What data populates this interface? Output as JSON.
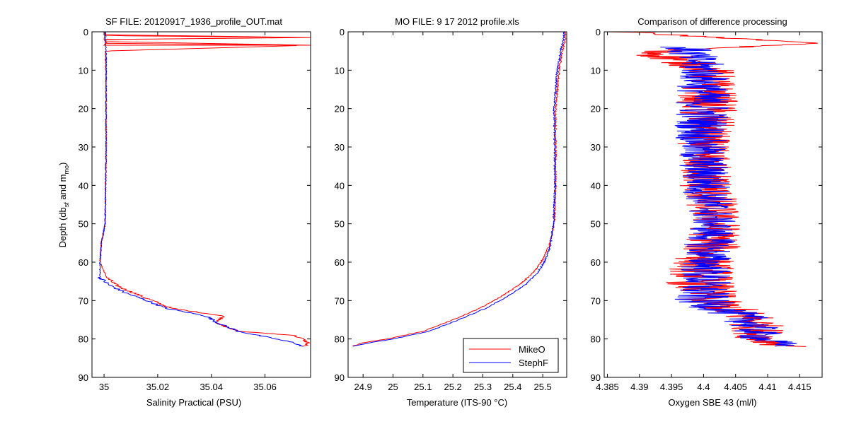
{
  "figure": {
    "ylabel_main": "Depth (db",
    "ylabel_sub1": "sf",
    "ylabel_mid": " and m",
    "ylabel_sub2": "mo",
    "ylabel_end": ")"
  },
  "chart_data": [
    {
      "type": "line",
      "title": "SF FILE: 20120917_1936_profile_OUT.mat",
      "xlabel": "Salinity Practical (PSU)",
      "ylabel": "Depth (db_sf and m_mo)",
      "xlim": [
        34.9955,
        35.077
      ],
      "ylim": [
        0,
        90
      ],
      "y_reversed": true,
      "xticks": [
        35,
        35.02,
        35.04,
        35.06
      ],
      "xtick_labels": [
        "35",
        "35.02",
        "35.04",
        "35.06"
      ],
      "yticks": [
        0,
        10,
        20,
        30,
        40,
        50,
        60,
        70,
        80,
        90
      ],
      "ytick_labels": [
        "0",
        "10",
        "20",
        "30",
        "40",
        "50",
        "60",
        "70",
        "80",
        "90"
      ],
      "colors": {
        "MikeO": "#ff0000",
        "StephF": "#0000ff"
      },
      "series": [
        {
          "name": "MikeO",
          "depth": [
            0,
            1,
            1.5,
            2,
            3,
            3.5,
            5,
            10,
            20,
            30,
            40,
            50,
            55,
            60,
            64,
            66,
            67,
            70,
            72,
            74,
            76,
            78,
            79,
            80,
            81,
            82
          ],
          "values": [
            35.0,
            35.0004,
            35.077,
            35.0,
            35.001,
            35.077,
            35.0005,
            35.0007,
            35.0008,
            35.0008,
            35.0006,
            35.0004,
            34.999,
            34.9985,
            35.001,
            35.0045,
            35.0075,
            35.018,
            35.025,
            35.0445,
            35.042,
            35.05,
            35.0705,
            35.074,
            35.076,
            35.0745
          ]
        },
        {
          "name": "StephF",
          "depth": [
            0,
            5,
            10,
            20,
            30,
            40,
            50,
            55,
            60,
            64,
            66,
            68,
            70,
            72,
            74,
            76,
            78,
            80,
            81,
            82
          ],
          "values": [
            35.0005,
            35.0007,
            35.0008,
            35.0007,
            35.0008,
            35.0006,
            35.0004,
            34.999,
            34.9985,
            34.9985,
            35.002,
            35.008,
            35.016,
            35.023,
            35.038,
            35.043,
            35.05,
            35.064,
            35.071,
            35.074
          ]
        }
      ]
    },
    {
      "type": "line",
      "title": "MO FILE: 9 17 2012 profile.xls",
      "xlabel": "Temperature (ITS-90 °C)",
      "xlim": [
        24.85,
        25.58
      ],
      "ylim": [
        0,
        90
      ],
      "y_reversed": true,
      "xticks": [
        24.9,
        25,
        25.1,
        25.2,
        25.3,
        25.4,
        25.5
      ],
      "xtick_labels": [
        "24.9",
        "25",
        "25.1",
        "25.2",
        "25.3",
        "25.4",
        "25.5"
      ],
      "yticks": [
        0,
        10,
        20,
        30,
        40,
        50,
        60,
        70,
        80,
        90
      ],
      "ytick_labels": [
        "0",
        "10",
        "20",
        "30",
        "40",
        "50",
        "60",
        "70",
        "80",
        "90"
      ],
      "legend": {
        "position": "bottom-right",
        "entries": [
          "MikeO",
          "StephF"
        ]
      },
      "colors": {
        "MikeO": "#ff0000",
        "StephF": "#0000ff"
      },
      "series": [
        {
          "name": "MikeO",
          "depth": [
            0,
            2,
            5,
            10,
            20,
            40,
            50,
            56,
            60,
            63,
            66,
            69,
            72,
            75,
            78,
            80,
            81,
            82
          ],
          "values": [
            25.575,
            25.575,
            25.565,
            25.555,
            25.543,
            25.543,
            25.538,
            25.52,
            25.495,
            25.465,
            25.42,
            25.36,
            25.29,
            25.2,
            25.1,
            24.98,
            24.9,
            24.86
          ]
        },
        {
          "name": "StephF",
          "depth": [
            0,
            2,
            5,
            10,
            20,
            40,
            50,
            56,
            60,
            63,
            66,
            69,
            72,
            75,
            78,
            80,
            81,
            82
          ],
          "values": [
            25.57,
            25.57,
            25.56,
            25.548,
            25.538,
            25.541,
            25.536,
            25.525,
            25.505,
            25.48,
            25.44,
            25.38,
            25.31,
            25.22,
            25.12,
            25.0,
            24.92,
            24.86
          ]
        }
      ]
    },
    {
      "type": "line",
      "title": "Comparison of difference processing",
      "xlabel": "Oxygen SBE 43 (ml/l)",
      "xlim": [
        4.3845,
        4.4185
      ],
      "ylim": [
        0,
        90
      ],
      "y_reversed": true,
      "xticks": [
        4.385,
        4.39,
        4.395,
        4.4,
        4.405,
        4.41,
        4.415
      ],
      "xtick_labels": [
        "4.385",
        "4.39",
        "4.395",
        "4.4",
        "4.405",
        "4.41",
        "4.415"
      ],
      "yticks": [
        0,
        10,
        20,
        30,
        40,
        50,
        60,
        70,
        80,
        90
      ],
      "ytick_labels": [
        "0",
        "10",
        "20",
        "30",
        "40",
        "50",
        "60",
        "70",
        "80",
        "90"
      ],
      "colors": {
        "MikeO": "#ff0000",
        "StephF": "#0000ff"
      },
      "series": [
        {
          "name": "MikeO",
          "depth": [
            0,
            3,
            5,
            10,
            20,
            30,
            40,
            50,
            55,
            60,
            65,
            70,
            75,
            80,
            82
          ],
          "center": [
            4.387,
            4.418,
            4.392,
            4.401,
            4.4005,
            4.4,
            4.4005,
            4.402,
            4.4015,
            4.4,
            4.3995,
            4.4005,
            4.408,
            4.409,
            4.4135
          ],
          "spread": [
            0.003,
            0.0005,
            0.005,
            0.004,
            0.005,
            0.004,
            0.0045,
            0.004,
            0.0045,
            0.005,
            0.0055,
            0.005,
            0.0045,
            0.004,
            0.0035
          ]
        },
        {
          "name": "StephF",
          "depth": [
            4,
            10,
            20,
            30,
            40,
            50,
            55,
            60,
            65,
            70,
            75,
            80,
            82
          ],
          "center": [
            4.397,
            4.4,
            4.4,
            4.3995,
            4.4005,
            4.4015,
            4.401,
            4.4005,
            4.4,
            4.3995,
            4.407,
            4.409,
            4.4135
          ],
          "spread": [
            0.004,
            0.004,
            0.0045,
            0.004,
            0.004,
            0.0035,
            0.004,
            0.004,
            0.0045,
            0.0045,
            0.004,
            0.0035,
            0.003
          ]
        }
      ]
    }
  ]
}
